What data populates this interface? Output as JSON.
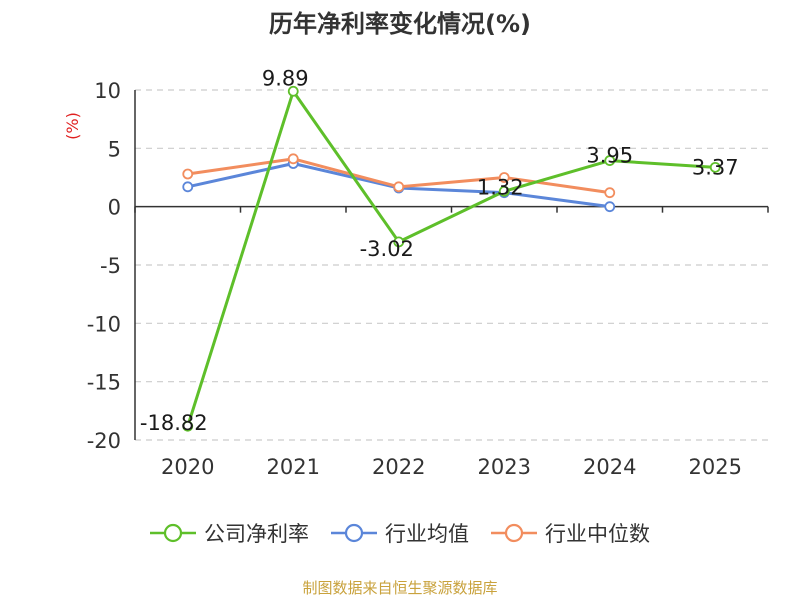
{
  "chart_data": {
    "type": "line",
    "title": "历年净利率变化情况(%)",
    "ylabel": "(%)",
    "categories": [
      "2020",
      "2021",
      "2022",
      "2023",
      "2024",
      "2025"
    ],
    "ylim": [
      -20,
      10
    ],
    "yticks": [
      10,
      5,
      0,
      -5,
      -10,
      -15,
      -20
    ],
    "grid": true,
    "legend_position": "bottom",
    "series": [
      {
        "name": "公司净利率",
        "color": "#5ebf2a",
        "values": [
          -18.82,
          9.89,
          -3.02,
          1.32,
          3.95,
          3.37
        ],
        "labels": [
          "-18.82",
          "9.89",
          "-3.02",
          "1.32",
          "3.95",
          "3.37"
        ]
      },
      {
        "name": "行业均值",
        "color": "#5b86d9",
        "values": [
          1.7,
          3.7,
          1.6,
          1.2,
          0.0,
          null
        ]
      },
      {
        "name": "行业中位数",
        "color": "#f28d5e",
        "values": [
          2.8,
          4.1,
          1.7,
          2.5,
          1.2,
          null
        ]
      }
    ]
  },
  "source_note": "制图数据来自恒生聚源数据库",
  "ylabel_color": "#e02020"
}
